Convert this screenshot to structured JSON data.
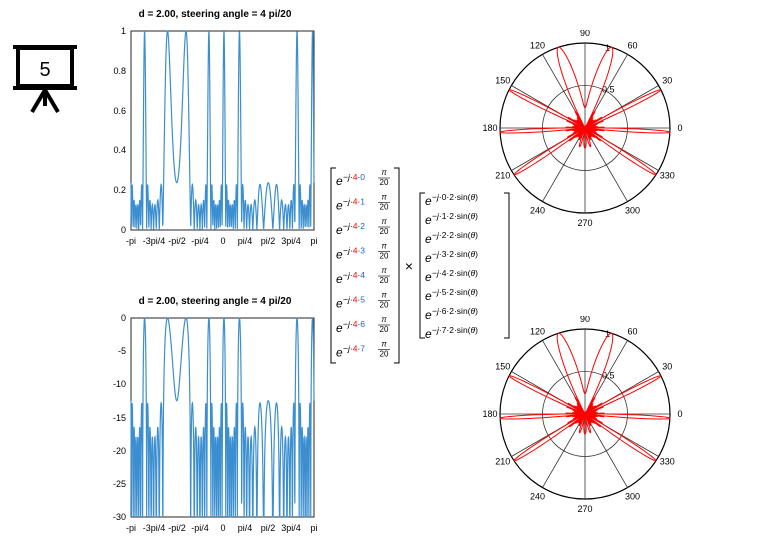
{
  "slide_number": "5",
  "charts": {
    "top": {
      "title": "d = 2.00, steering angle  = 4 pi/20",
      "y_ticks": [
        "0",
        "0.2",
        "0.4",
        "0.6",
        "0.8",
        "1"
      ],
      "x_ticks": [
        "-pi",
        "-3pi/4",
        "-pi/2",
        "-pi/4",
        "0",
        "pi/4",
        "pi/2",
        "3pi/4",
        "pi"
      ],
      "x_tick_values": [
        -3.1416,
        -2.3562,
        -1.5708,
        -0.7854,
        0,
        0.7854,
        1.5708,
        2.3562,
        3.1416
      ]
    },
    "bottom": {
      "title": "d = 2.00, steering angle  = 4 pi/20",
      "y_ticks": [
        "-30",
        "-25",
        "-20",
        "-15",
        "-10",
        "-5",
        "0"
      ],
      "x_ticks": [
        "-pi",
        "-3pi/4",
        "-pi/2",
        "-pi/4",
        "0",
        "pi/4",
        "pi/2",
        "3pi/4",
        "pi"
      ],
      "x_tick_values": [
        -3.1416,
        -2.3562,
        -1.5708,
        -0.7854,
        0,
        0.7854,
        1.5708,
        2.3562,
        3.1416
      ]
    }
  },
  "chart_data": [
    {
      "type": "line",
      "title": "d = 2.00, steering angle  = 4 pi/20",
      "xlim": [
        -3.1416,
        3.1416
      ],
      "ylim": [
        0,
        1
      ],
      "x_ticks": [
        "-pi",
        "-3pi/4",
        "-pi/2",
        "-pi/4",
        "0",
        "pi/4",
        "pi/2",
        "3pi/4",
        "pi"
      ],
      "y_ticks": [
        0,
        0.2,
        0.4,
        0.6,
        0.8,
        1
      ],
      "series": [
        {
          "model": {
            "kind": "array_factor",
            "elements": 8,
            "d": 2.0,
            "steer": 0.6283,
            "scale": "linear"
          },
          "color": "#3b8fd0"
        }
      ]
    },
    {
      "type": "line",
      "title": "d = 2.00, steering angle  = 4 pi/20",
      "xlim": [
        -3.1416,
        3.1416
      ],
      "ylim": [
        -30,
        0
      ],
      "x_ticks": [
        "-pi",
        "-3pi/4",
        "-pi/2",
        "-pi/4",
        "0",
        "pi/4",
        "pi/2",
        "3pi/4",
        "pi"
      ],
      "y_ticks": [
        -30,
        -25,
        -20,
        -15,
        -10,
        -5,
        0
      ],
      "series": [
        {
          "model": {
            "kind": "array_factor",
            "elements": 8,
            "d": 2.0,
            "steer": 0.6283,
            "scale": "dB"
          },
          "color": "#3b8fd0"
        }
      ]
    },
    {
      "type": "polar",
      "angle_labels": [
        "0",
        "30",
        "60",
        "90",
        "120",
        "150",
        "180",
        "210",
        "240",
        "270",
        "300",
        "330"
      ],
      "radial_labels": [
        "0.5",
        "1"
      ],
      "series": [
        {
          "model": {
            "kind": "array_factor",
            "elements": 8,
            "d": 2.0,
            "steer": 0.6283,
            "scale": "linear"
          },
          "color": "#ff0000"
        }
      ]
    },
    {
      "type": "polar",
      "angle_labels": [
        "0",
        "30",
        "60",
        "90",
        "120",
        "150",
        "180",
        "210",
        "240",
        "270",
        "300",
        "330"
      ],
      "radial_labels": [
        "0.5",
        "1"
      ],
      "series": [
        {
          "model": {
            "kind": "array_factor",
            "elements": 8,
            "d": 2.0,
            "steer": 0.6283,
            "scale": "linear"
          },
          "color": "#ff0000"
        }
      ]
    }
  ],
  "formula": {
    "left_vector": [
      "0",
      "1",
      "2",
      "3",
      "4",
      "5",
      "6",
      "7"
    ],
    "right_vector": [
      "0",
      "1",
      "2",
      "3",
      "4",
      "5",
      "6",
      "7"
    ],
    "operator": "×",
    "steer_index": "4",
    "denominator": "20",
    "pi": "π",
    "spacing": "2",
    "theta": "θ"
  },
  "colors": {
    "line": "#3b8fd0",
    "polar": "#ff0000",
    "highlight": "#ff0000"
  }
}
